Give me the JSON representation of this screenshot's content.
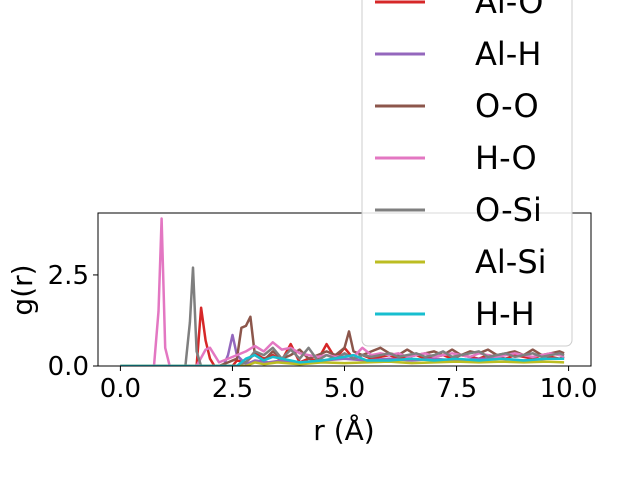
{
  "chart_data": {
    "type": "line",
    "title": "",
    "xlabel": "r (Å)",
    "ylabel": "g(r)",
    "xlim": [
      -0.5,
      10.5
    ],
    "ylim": [
      0,
      4.2
    ],
    "xticks": [
      {
        "value": 0.0,
        "label": "0.0"
      },
      {
        "value": 2.5,
        "label": "2.5"
      },
      {
        "value": 5.0,
        "label": "5.0"
      },
      {
        "value": 7.5,
        "label": "7.5"
      },
      {
        "value": 10.0,
        "label": "10.0"
      }
    ],
    "yticks": [
      {
        "value": 0.0,
        "label": "0.0"
      },
      {
        "value": 2.5,
        "label": "2.5"
      }
    ],
    "grid": false,
    "legend_position": "upper-right (extends above plot area)",
    "legend_entries": [
      "Al-O",
      "Al-H",
      "O-O",
      "H-O",
      "O-Si",
      "Al-Si",
      "H-H"
    ],
    "series": [
      {
        "name": "Al-O",
        "color": "#d62728",
        "x": [
          0,
          1.6,
          1.7,
          1.8,
          1.9,
          2.0,
          2.1,
          2.5,
          2.6,
          2.8,
          3.0,
          3.2,
          3.4,
          3.6,
          3.8,
          4.0,
          4.2,
          4.4,
          4.6,
          4.8,
          5.0,
          5.2,
          5.4,
          5.6,
          5.8,
          6.0,
          6.2,
          6.4,
          6.6,
          6.8,
          7.0,
          7.2,
          7.4,
          7.6,
          7.8,
          8.0,
          8.2,
          8.4,
          8.6,
          8.8,
          9.0,
          9.2,
          9.4,
          9.6,
          9.8,
          9.9
        ],
        "y": [
          0,
          0,
          0,
          1.6,
          0.7,
          0.2,
          0,
          0,
          0.15,
          0.1,
          0.35,
          0.2,
          0.3,
          0.15,
          0.6,
          0.1,
          0.2,
          0.15,
          0.6,
          0.2,
          0.5,
          0.2,
          0.3,
          0.2,
          0.25,
          0.3,
          0.2,
          0.25,
          0.3,
          0.2,
          0.25,
          0.3,
          0.2,
          0.3,
          0.25,
          0.2,
          0.3,
          0.25,
          0.2,
          0.3,
          0.25,
          0.2,
          0.3,
          0.25,
          0.2,
          0.25
        ]
      },
      {
        "name": "Al-H",
        "color": "#9467bd",
        "x": [
          0,
          2.3,
          2.4,
          2.5,
          2.6,
          2.8,
          3.0,
          3.3,
          3.6,
          4.0,
          4.5,
          5.0,
          5.5,
          6.0,
          6.5,
          7.0,
          7.5,
          8.0,
          8.5,
          9.0,
          9.5,
          9.9
        ],
        "y": [
          0,
          0,
          0.3,
          0.85,
          0.3,
          0.05,
          0.15,
          0.1,
          0.15,
          0.1,
          0.15,
          0.2,
          0.15,
          0.2,
          0.15,
          0.2,
          0.15,
          0.2,
          0.2,
          0.15,
          0.2,
          0.2
        ]
      },
      {
        "name": "O-O",
        "color": "#8c564b",
        "x": [
          0,
          2.2,
          2.4,
          2.6,
          2.7,
          2.8,
          2.9,
          3.0,
          3.2,
          3.4,
          3.6,
          3.8,
          4.0,
          4.2,
          4.4,
          4.6,
          4.8,
          5.0,
          5.1,
          5.2,
          5.4,
          5.6,
          5.8,
          6.0,
          6.2,
          6.4,
          6.6,
          6.8,
          7.0,
          7.2,
          7.4,
          7.6,
          7.8,
          8.0,
          8.2,
          8.4,
          8.6,
          8.8,
          9.0,
          9.2,
          9.4,
          9.6,
          9.8,
          9.9
        ],
        "y": [
          0,
          0,
          0.1,
          0.2,
          1.05,
          1.1,
          1.35,
          0.3,
          0.15,
          0.4,
          0.2,
          0.3,
          0.45,
          0.2,
          0.3,
          0.4,
          0.3,
          0.5,
          0.95,
          0.4,
          0.3,
          0.4,
          0.5,
          0.35,
          0.3,
          0.45,
          0.3,
          0.35,
          0.4,
          0.3,
          0.45,
          0.3,
          0.4,
          0.35,
          0.45,
          0.3,
          0.35,
          0.4,
          0.3,
          0.45,
          0.3,
          0.35,
          0.4,
          0.35
        ]
      },
      {
        "name": "H-O",
        "color": "#e377c2",
        "x": [
          0,
          0.75,
          0.85,
          0.92,
          1.0,
          1.1,
          1.7,
          1.9,
          2.0,
          2.2,
          2.6,
          2.8,
          3.0,
          3.2,
          3.4,
          3.6,
          3.8,
          4.0,
          4.2,
          4.4,
          4.6,
          4.8,
          5.0,
          5.2,
          5.4,
          5.6,
          5.8,
          6.0,
          6.2,
          6.4,
          6.6,
          6.8,
          7.0,
          7.2,
          7.4,
          7.6,
          7.8,
          8.0,
          8.2,
          8.4,
          8.6,
          8.8,
          9.0,
          9.2,
          9.4,
          9.6,
          9.8,
          9.9
        ],
        "y": [
          0,
          0,
          1.5,
          4.05,
          0.5,
          0,
          0,
          0.45,
          0.5,
          0.1,
          0.3,
          0.4,
          0.55,
          0.4,
          0.65,
          0.45,
          0.5,
          0.35,
          0.3,
          0.25,
          0.3,
          0.25,
          0.3,
          0.25,
          0.5,
          0.3,
          0.35,
          0.3,
          0.35,
          0.25,
          0.3,
          0.35,
          0.25,
          0.3,
          0.35,
          0.3,
          0.25,
          0.35,
          0.3,
          0.25,
          0.3,
          0.35,
          0.3,
          0.25,
          0.3,
          0.35,
          0.3,
          0.25
        ]
      },
      {
        "name": "O-Si",
        "color": "#7f7f7f",
        "x": [
          0,
          1.45,
          1.55,
          1.62,
          1.7,
          1.8,
          2.6,
          2.8,
          3.0,
          3.2,
          3.4,
          3.6,
          3.8,
          4.0,
          4.2,
          4.4,
          4.6,
          4.8,
          5.0,
          5.2,
          5.4,
          5.6,
          5.8,
          6.0,
          6.2,
          6.4,
          6.6,
          6.8,
          7.0,
          7.2,
          7.4,
          7.6,
          7.8,
          8.0,
          8.2,
          8.4,
          8.6,
          8.8,
          9.0,
          9.2,
          9.4,
          9.6,
          9.8,
          9.9
        ],
        "y": [
          0,
          0,
          1.2,
          2.7,
          0.4,
          0,
          0,
          0.1,
          0.4,
          0.3,
          0.5,
          0.2,
          0.45,
          0.2,
          0.5,
          0.15,
          0.3,
          0.2,
          0.35,
          0.2,
          0.3,
          0.25,
          0.3,
          0.35,
          0.25,
          0.3,
          0.35,
          0.25,
          0.3,
          0.4,
          0.25,
          0.3,
          0.35,
          0.4,
          0.25,
          0.3,
          0.35,
          0.25,
          0.3,
          0.35,
          0.25,
          0.3,
          0.35,
          0.3
        ]
      },
      {
        "name": "Al-Si",
        "color": "#bcbd22",
        "x": [
          0,
          2.8,
          3.0,
          3.2,
          3.5,
          4.0,
          4.5,
          5.0,
          5.5,
          6.0,
          6.5,
          7.0,
          7.5,
          8.0,
          8.5,
          9.0,
          9.5,
          9.9
        ],
        "y": [
          0,
          0,
          0.1,
          0.05,
          0.1,
          0.05,
          0.1,
          0.08,
          0.1,
          0.12,
          0.08,
          0.1,
          0.12,
          0.1,
          0.12,
          0.1,
          0.12,
          0.1
        ]
      },
      {
        "name": "H-H",
        "color": "#17becf",
        "x": [
          0,
          2.6,
          2.8,
          3.0,
          3.2,
          3.4,
          3.6,
          3.8,
          4.0,
          4.5,
          5.0,
          5.2,
          5.5,
          6.0,
          6.5,
          7.0,
          7.5,
          8.0,
          8.5,
          9.0,
          9.5,
          9.9
        ],
        "y": [
          0,
          0,
          0.2,
          0.3,
          0.15,
          0.25,
          0.2,
          0.15,
          0.1,
          0.15,
          0.25,
          0.3,
          0.15,
          0.15,
          0.2,
          0.15,
          0.2,
          0.15,
          0.2,
          0.15,
          0.2,
          0.2
        ]
      }
    ]
  }
}
